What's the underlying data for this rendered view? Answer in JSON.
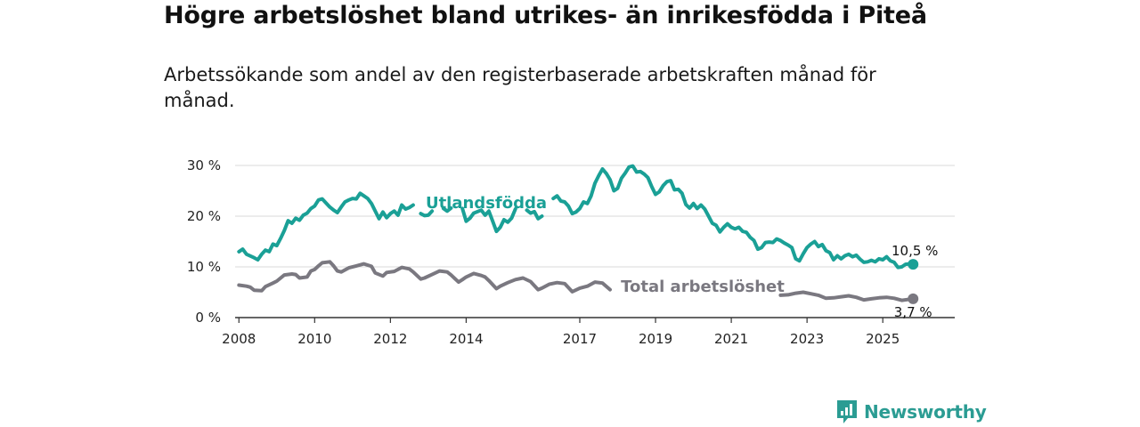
{
  "title": "Högre arbetslöshet bland utrikes- än inrikesfödda i Piteå",
  "subtitle": "Arbetssökande som andel av den registerbaserade arbetskraften månad för månad.",
  "brand": {
    "name": "Newsworthy"
  },
  "colors": {
    "foreign": "#1aa096",
    "total": "#7a7880",
    "grid": "#d9d9d9",
    "brand": "#2b9c93"
  },
  "chart_data": {
    "type": "line",
    "title": "Högre arbetslöshet bland utrikes- än inrikesfödda i Piteå",
    "xlabel": "",
    "ylabel": "",
    "xlim": [
      2007.9,
      2026.9
    ],
    "ylim": [
      0,
      30
    ],
    "x_ticks": [
      {
        "value": 2008,
        "label": "2008"
      },
      {
        "value": 2010,
        "label": "2010"
      },
      {
        "value": 2012,
        "label": "2012"
      },
      {
        "value": 2014,
        "label": "2014"
      },
      {
        "value": 2017,
        "label": "2017"
      },
      {
        "value": 2019,
        "label": "2019"
      },
      {
        "value": 2021,
        "label": "2021"
      },
      {
        "value": 2023,
        "label": "2023"
      },
      {
        "value": 2025,
        "label": "2025"
      }
    ],
    "y_ticks": [
      {
        "value": 0,
        "label": "0 %"
      },
      {
        "value": 10,
        "label": "10 %"
      },
      {
        "value": 20,
        "label": "20 %"
      },
      {
        "value": 30,
        "label": "30 %"
      }
    ],
    "series": [
      {
        "name": "Utlandsfödda",
        "label": "Utlandsfödda",
        "end_label": "10,5 %",
        "points": [
          [
            2008.0,
            13.0
          ],
          [
            2008.1,
            13.5
          ],
          [
            2008.2,
            12.5
          ],
          [
            2008.4,
            11.8
          ],
          [
            2008.5,
            11.4
          ],
          [
            2008.6,
            12.5
          ],
          [
            2008.7,
            13.3
          ],
          [
            2008.8,
            13.0
          ],
          [
            2008.9,
            14.5
          ],
          [
            2009.0,
            14.2
          ],
          [
            2009.1,
            15.6
          ],
          [
            2009.2,
            17.2
          ],
          [
            2009.3,
            19.1
          ],
          [
            2009.4,
            18.6
          ],
          [
            2009.5,
            19.6
          ],
          [
            2009.6,
            19.2
          ],
          [
            2009.7,
            20.2
          ],
          [
            2009.8,
            20.6
          ],
          [
            2009.9,
            21.5
          ],
          [
            2010.0,
            22.0
          ],
          [
            2010.1,
            23.2
          ],
          [
            2010.2,
            23.4
          ],
          [
            2010.3,
            22.6
          ],
          [
            2010.4,
            21.8
          ],
          [
            2010.5,
            21.2
          ],
          [
            2010.6,
            20.7
          ],
          [
            2010.7,
            21.8
          ],
          [
            2010.8,
            22.8
          ],
          [
            2010.9,
            23.2
          ],
          [
            2011.0,
            23.5
          ],
          [
            2011.1,
            23.4
          ],
          [
            2011.2,
            24.5
          ],
          [
            2011.3,
            24.0
          ],
          [
            2011.4,
            23.5
          ],
          [
            2011.5,
            22.5
          ],
          [
            2011.6,
            21.0
          ],
          [
            2011.7,
            19.5
          ],
          [
            2011.8,
            20.8
          ],
          [
            2011.9,
            19.7
          ],
          [
            2012.0,
            20.5
          ],
          [
            2012.1,
            21.0
          ],
          [
            2012.2,
            20.2
          ],
          [
            2012.3,
            22.2
          ],
          [
            2012.4,
            21.4
          ],
          [
            2012.5,
            21.7
          ],
          [
            2012.6,
            22.2
          ]
        ],
        "segments": [
          [
            [
              2012.8,
              20.5
            ],
            [
              2012.9,
              20.1
            ],
            [
              2013.0,
              20.2
            ],
            [
              2013.1,
              21.0
            ]
          ],
          [
            [
              2013.4,
              21.5
            ],
            [
              2013.5,
              21.0
            ],
            [
              2013.6,
              21.6
            ]
          ],
          [
            [
              2013.9,
              21.5
            ],
            [
              2014.0,
              19.0
            ],
            [
              2014.1,
              19.6
            ],
            [
              2014.2,
              20.6
            ],
            [
              2014.4,
              21.2
            ],
            [
              2014.5,
              20.2
            ],
            [
              2014.6,
              21.0
            ],
            [
              2014.7,
              19.0
            ],
            [
              2014.8,
              17.0
            ],
            [
              2014.9,
              17.8
            ],
            [
              2015.0,
              19.3
            ],
            [
              2015.1,
              18.8
            ],
            [
              2015.2,
              19.6
            ],
            [
              2015.3,
              21.4
            ]
          ],
          [
            [
              2015.6,
              21.2
            ],
            [
              2015.7,
              20.6
            ],
            [
              2015.8,
              20.9
            ],
            [
              2015.9,
              19.5
            ],
            [
              2016.0,
              20.0
            ]
          ],
          [
            [
              2016.3,
              23.5
            ],
            [
              2016.4,
              24.0
            ],
            [
              2016.5,
              23.0
            ],
            [
              2016.6,
              22.8
            ],
            [
              2016.7,
              22.0
            ],
            [
              2016.8,
              20.5
            ],
            [
              2016.9,
              20.8
            ],
            [
              2017.0,
              21.5
            ],
            [
              2017.1,
              22.8
            ],
            [
              2017.2,
              22.5
            ],
            [
              2017.3,
              24.0
            ],
            [
              2017.4,
              26.5
            ],
            [
              2017.5,
              28.0
            ],
            [
              2017.6,
              29.3
            ],
            [
              2017.7,
              28.4
            ],
            [
              2017.8,
              27.2
            ],
            [
              2017.9,
              25.0
            ],
            [
              2018.0,
              25.5
            ],
            [
              2018.1,
              27.5
            ],
            [
              2018.2,
              28.5
            ],
            [
              2018.3,
              29.7
            ],
            [
              2018.4,
              29.9
            ],
            [
              2018.5,
              28.7
            ],
            [
              2018.6,
              28.8
            ],
            [
              2018.7,
              28.3
            ],
            [
              2018.8,
              27.6
            ],
            [
              2018.9,
              25.8
            ],
            [
              2019.0,
              24.3
            ],
            [
              2019.1,
              24.8
            ],
            [
              2019.2,
              26.0
            ],
            [
              2019.3,
              26.8
            ],
            [
              2019.4,
              27.0
            ],
            [
              2019.5,
              25.2
            ],
            [
              2019.6,
              25.3
            ],
            [
              2019.7,
              24.5
            ],
            [
              2019.8,
              22.3
            ],
            [
              2019.9,
              21.6
            ],
            [
              2020.0,
              22.5
            ],
            [
              2020.1,
              21.5
            ],
            [
              2020.2,
              22.2
            ],
            [
              2020.3,
              21.4
            ],
            [
              2020.4,
              20.0
            ],
            [
              2020.5,
              18.6
            ],
            [
              2020.6,
              18.2
            ],
            [
              2020.7,
              16.9
            ],
            [
              2020.8,
              17.8
            ],
            [
              2020.9,
              18.5
            ],
            [
              2021.0,
              17.8
            ],
            [
              2021.1,
              17.5
            ],
            [
              2021.2,
              17.8
            ],
            [
              2021.3,
              17.0
            ],
            [
              2021.4,
              16.8
            ],
            [
              2021.5,
              15.8
            ],
            [
              2021.6,
              15.2
            ],
            [
              2021.7,
              13.5
            ],
            [
              2021.8,
              13.8
            ],
            [
              2021.9,
              14.8
            ],
            [
              2022.0,
              14.9
            ],
            [
              2022.1,
              14.8
            ],
            [
              2022.2,
              15.5
            ],
            [
              2022.3,
              15.2
            ],
            [
              2022.4,
              14.7
            ],
            [
              2022.5,
              14.3
            ],
            [
              2022.6,
              13.8
            ],
            [
              2022.7,
              11.6
            ],
            [
              2022.8,
              11.2
            ],
            [
              2022.9,
              12.6
            ],
            [
              2023.0,
              13.8
            ],
            [
              2023.1,
              14.5
            ],
            [
              2023.2,
              15.0
            ],
            [
              2023.3,
              14.0
            ],
            [
              2023.4,
              14.4
            ],
            [
              2023.5,
              13.2
            ],
            [
              2023.6,
              12.8
            ],
            [
              2023.7,
              11.4
            ],
            [
              2023.8,
              12.2
            ],
            [
              2023.9,
              11.6
            ],
            [
              2024.0,
              12.2
            ],
            [
              2024.1,
              12.5
            ],
            [
              2024.2,
              12.0
            ],
            [
              2024.3,
              12.3
            ],
            [
              2024.4,
              11.5
            ],
            [
              2024.5,
              10.9
            ],
            [
              2024.6,
              11.0
            ],
            [
              2024.7,
              11.3
            ],
            [
              2024.8,
              11.0
            ],
            [
              2024.9,
              11.6
            ],
            [
              2025.0,
              11.4
            ],
            [
              2025.1,
              12.0
            ],
            [
              2025.2,
              11.2
            ],
            [
              2025.3,
              10.9
            ],
            [
              2025.4,
              9.9
            ],
            [
              2025.5,
              10.0
            ],
            [
              2025.6,
              10.5
            ],
            [
              2025.7,
              10.6
            ],
            [
              2025.8,
              10.5
            ]
          ]
        ]
      },
      {
        "name": "Total arbetslöshet",
        "label": "Total arbetslöshet",
        "end_label": "3,7 %",
        "points": [],
        "segments": [
          [
            [
              2008.0,
              6.4
            ],
            [
              2008.2,
              6.2
            ],
            [
              2008.3,
              6.0
            ],
            [
              2008.4,
              5.4
            ],
            [
              2008.6,
              5.3
            ],
            [
              2008.7,
              6.1
            ],
            [
              2008.9,
              6.8
            ],
            [
              2009.0,
              7.2
            ],
            [
              2009.2,
              8.4
            ],
            [
              2009.4,
              8.6
            ],
            [
              2009.5,
              8.5
            ],
            [
              2009.6,
              7.8
            ],
            [
              2009.8,
              8.0
            ],
            [
              2009.9,
              9.2
            ],
            [
              2010.0,
              9.5
            ],
            [
              2010.1,
              10.2
            ],
            [
              2010.2,
              10.8
            ],
            [
              2010.4,
              11.0
            ],
            [
              2010.5,
              10.2
            ],
            [
              2010.6,
              9.2
            ],
            [
              2010.7,
              9.0
            ],
            [
              2010.9,
              9.8
            ],
            [
              2011.1,
              10.2
            ],
            [
              2011.3,
              10.6
            ],
            [
              2011.5,
              10.1
            ],
            [
              2011.6,
              8.8
            ],
            [
              2011.8,
              8.2
            ],
            [
              2011.9,
              8.9
            ],
            [
              2012.1,
              9.1
            ],
            [
              2012.2,
              9.5
            ],
            [
              2012.3,
              9.9
            ],
            [
              2012.5,
              9.6
            ],
            [
              2012.6,
              9.0
            ],
            [
              2012.8,
              7.6
            ],
            [
              2012.9,
              7.8
            ],
            [
              2013.1,
              8.5
            ],
            [
              2013.3,
              9.2
            ],
            [
              2013.5,
              9.0
            ],
            [
              2013.6,
              8.4
            ],
            [
              2013.8,
              7.0
            ],
            [
              2013.9,
              7.5
            ],
            [
              2014.0,
              8.0
            ],
            [
              2014.2,
              8.7
            ],
            [
              2014.4,
              8.3
            ],
            [
              2014.5,
              8.0
            ],
            [
              2014.6,
              7.3
            ],
            [
              2014.8,
              5.7
            ],
            [
              2014.9,
              6.2
            ],
            [
              2015.1,
              6.9
            ],
            [
              2015.3,
              7.5
            ],
            [
              2015.5,
              7.8
            ],
            [
              2015.7,
              7.1
            ],
            [
              2015.9,
              5.5
            ],
            [
              2016.0,
              5.8
            ],
            [
              2016.2,
              6.6
            ],
            [
              2016.4,
              6.9
            ],
            [
              2016.6,
              6.7
            ],
            [
              2016.8,
              5.1
            ],
            [
              2017.0,
              5.8
            ],
            [
              2017.2,
              6.2
            ],
            [
              2017.4,
              7.0
            ],
            [
              2017.6,
              6.8
            ],
            [
              2017.8,
              5.5
            ]
          ],
          [
            [
              2022.3,
              4.4
            ],
            [
              2022.5,
              4.5
            ],
            [
              2022.7,
              4.8
            ],
            [
              2022.9,
              5.0
            ],
            [
              2023.1,
              4.7
            ],
            [
              2023.3,
              4.4
            ],
            [
              2023.5,
              3.8
            ],
            [
              2023.7,
              3.9
            ],
            [
              2023.9,
              4.1
            ],
            [
              2024.1,
              4.3
            ],
            [
              2024.3,
              4.0
            ],
            [
              2024.5,
              3.5
            ],
            [
              2024.7,
              3.7
            ],
            [
              2024.9,
              3.9
            ],
            [
              2025.1,
              4.0
            ],
            [
              2025.3,
              3.8
            ],
            [
              2025.5,
              3.4
            ],
            [
              2025.7,
              3.6
            ],
            [
              2025.8,
              3.7
            ]
          ]
        ]
      }
    ]
  }
}
